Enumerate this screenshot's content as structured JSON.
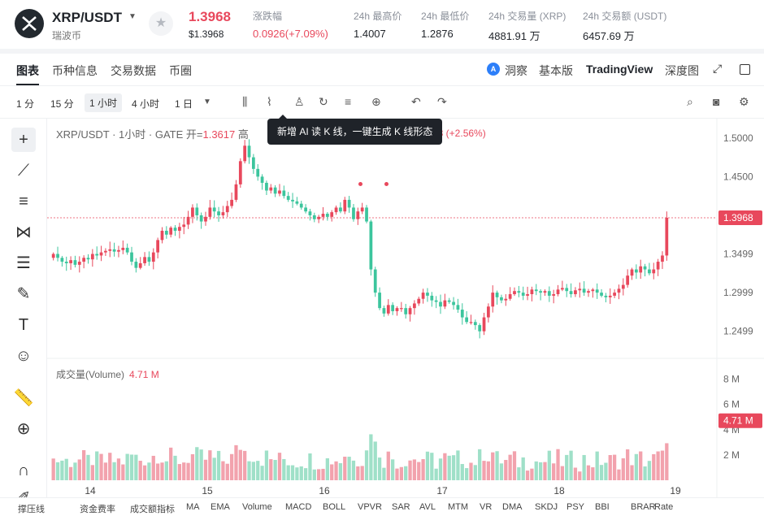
{
  "header": {
    "pair": "XRP/USDT",
    "name": "瑞波币",
    "price": "1.3968",
    "price_usd": "$1.3968",
    "stats": [
      {
        "label": "涨跌幅",
        "value": "0.0926(+7.09%)",
        "red": true
      },
      {
        "label": "24h 最高价",
        "value": "1.4007"
      },
      {
        "label": "24h 最低价",
        "value": "1.2876"
      },
      {
        "label": "24h 交易量 (XRP)",
        "value": "4881.91 万"
      },
      {
        "label": "24h 交易额 (USDT)",
        "value": "6457.69 万"
      }
    ]
  },
  "tabs": [
    "图表",
    "币种信息",
    "交易数据",
    "币圈"
  ],
  "right_tabs": {
    "ai": "洞察",
    "basic": "基本版",
    "tv": "TradingView",
    "depth": "深度图"
  },
  "intervals": [
    "1 分",
    "15 分",
    "1 小时",
    "4 小时",
    "1 日"
  ],
  "selected_interval": "1 小时",
  "legend": {
    "prefix": "XRP/USDT · 1小时 · GATE",
    "open_label": "开=",
    "open": "1.3617",
    "high_label": "高",
    "change": "48 (+2.56%)"
  },
  "tooltip": "新增 AI 读 K 线，一键生成 K 线形态",
  "volume_legend": {
    "label": "成交量(Volume)",
    "value": "4.71 M"
  },
  "indicators": [
    "撑压线",
    "资金费率",
    "成交额指标",
    "MA",
    "EMA",
    "Volume",
    "MACD",
    "BOLL",
    "VPVR",
    "SAR",
    "AVL",
    "MTM",
    "VR",
    "DMA",
    "SKDJ",
    "PSY",
    "BBI",
    "BRAR",
    "Rate"
  ],
  "chart_data": {
    "type": "candlestick",
    "price_ticks": [
      "1.5000",
      "1.4500",
      "1.3968",
      "1.3499",
      "1.2999",
      "1.2499"
    ],
    "volume_ticks": [
      "8 M",
      "6 M",
      "4.71 M",
      "4 M",
      "2 M"
    ],
    "x_ticks": [
      "14",
      "15",
      "16",
      "17",
      "18",
      "19"
    ],
    "last_price": "1.3968",
    "colors": {
      "up": "#e8485c",
      "down": "#3cc59d",
      "up_vol": "#f2a2ad",
      "down_vol": "#9fe0c8"
    },
    "close": [
      1.35,
      1.345,
      1.34,
      1.338,
      1.342,
      1.336,
      1.34,
      1.345,
      1.343,
      1.35,
      1.348,
      1.352,
      1.354,
      1.356,
      1.353,
      1.355,
      1.358,
      1.352,
      1.34,
      1.332,
      1.338,
      1.346,
      1.34,
      1.352,
      1.368,
      1.38,
      1.375,
      1.384,
      1.38,
      1.385,
      1.388,
      1.398,
      1.41,
      1.4,
      1.392,
      1.398,
      1.41,
      1.405,
      1.4,
      1.404,
      1.412,
      1.42,
      1.44,
      1.47,
      1.49,
      1.475,
      1.46,
      1.45,
      1.442,
      1.432,
      1.436,
      1.428,
      1.432,
      1.425,
      1.42,
      1.418,
      1.415,
      1.41,
      1.405,
      1.4,
      1.395,
      1.398,
      1.402,
      1.398,
      1.404,
      1.41,
      1.405,
      1.42,
      1.41,
      1.395,
      1.405,
      1.41,
      1.392,
      1.33,
      1.3,
      1.28,
      1.273,
      1.284,
      1.276,
      1.28,
      1.28,
      1.272,
      1.28,
      1.286,
      1.292,
      1.3,
      1.296,
      1.29,
      1.288,
      1.282,
      1.29,
      1.288,
      1.284,
      1.278,
      1.268,
      1.262,
      1.262,
      1.258,
      1.25,
      1.268,
      1.282,
      1.3,
      1.294,
      1.29,
      1.292,
      1.298,
      1.302,
      1.3,
      1.296,
      1.298,
      1.304,
      1.302,
      1.3,
      1.302,
      1.296,
      1.298,
      1.304,
      1.306,
      1.302,
      1.298,
      1.303,
      1.305,
      1.3,
      1.302,
      1.304,
      1.3,
      1.296,
      1.294,
      1.296,
      1.3,
      1.305,
      1.31,
      1.322,
      1.33,
      1.326,
      1.334,
      1.33,
      1.325,
      1.33,
      1.34,
      1.348,
      1.3968
    ]
  }
}
